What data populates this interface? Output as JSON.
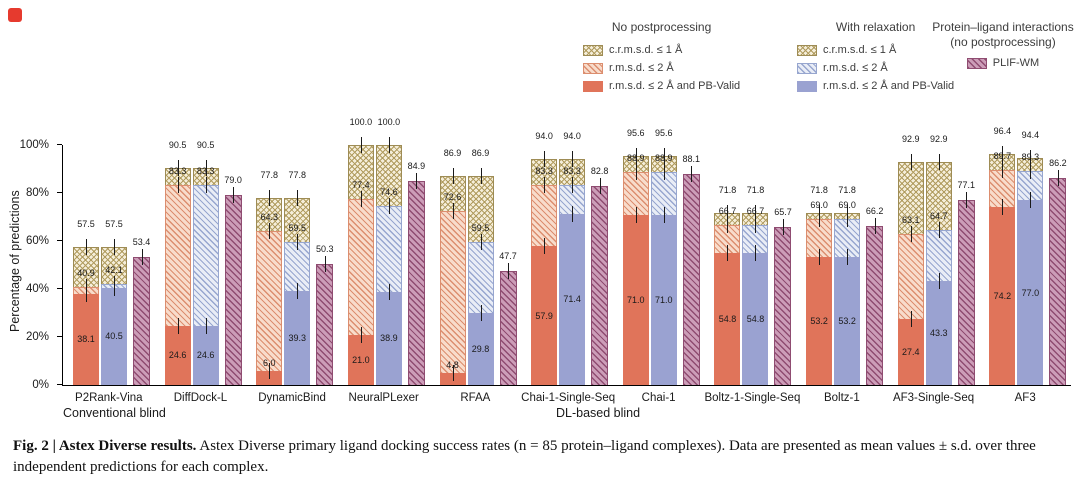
{
  "caption": {
    "label": "Fig. 2 |",
    "title": "Astex Diverse results.",
    "body": "Astex Diverse primary ligand docking success rates (n = 85 protein–ligand complexes). Data are presented as mean values ± s.d. over three independent predictions for each complex."
  },
  "axes": {
    "ylabel": "Percentage of predictions",
    "yticks": [
      "0%",
      "20%",
      "40%",
      "60%",
      "80%",
      "100%"
    ],
    "group_labels": [
      {
        "label": "Conventional blind"
      },
      {
        "label": "DL-based blind"
      }
    ]
  },
  "legend": {
    "groups": [
      {
        "title": "No postprocessing",
        "items": [
          {
            "label": "c.r.m.s.d. ≤ 1 Å",
            "swatch": "tan-crosshatch"
          },
          {
            "label": "r.m.s.d. ≤ 2 Å",
            "swatch": "salmon-hatch"
          },
          {
            "label": "r.m.s.d. ≤ 2 Å and PB-Valid",
            "swatch": "salmon-solid"
          }
        ]
      },
      {
        "title": "With relaxation",
        "items": [
          {
            "label": "c.r.m.s.d. ≤ 1 Å",
            "swatch": "tan-crosshatch"
          },
          {
            "label": "r.m.s.d. ≤ 2 Å",
            "swatch": "blue-hatch"
          },
          {
            "label": "r.m.s.d. ≤ 2 Å and PB-Valid",
            "swatch": "lavender-solid"
          }
        ]
      },
      {
        "title": "Protein–ligand interactions (no postprocessing)",
        "items": [
          {
            "label": "PLIF-WM",
            "swatch": "plif-hatch"
          }
        ]
      }
    ]
  },
  "chart_data": {
    "type": "bar",
    "title": "",
    "xlabel": "",
    "ylabel": "Percentage of predictions",
    "ylim": [
      0,
      100
    ],
    "grid": false,
    "error_bars_shown": true,
    "value_labels_shown": true,
    "legend_position": "top-right",
    "categories": [
      "P2Rank-Vina",
      "DiffDock-L",
      "DynamicBind",
      "NeuralPLexer",
      "RFAA",
      "Chai-1-Single-Seq",
      "Chai-1",
      "Boltz-1-Single-Seq",
      "Boltz-1",
      "AF3-Single-Seq",
      "AF3"
    ],
    "category_groups": [
      {
        "label": "Conventional blind",
        "span": [
          0,
          4
        ]
      },
      {
        "label": "DL-based blind",
        "span": [
          5,
          10
        ]
      }
    ],
    "series": [
      {
        "name": "c.r.m.s.d. ≤ 1 Å (no postprocessing)",
        "values": [
          57.5,
          90.5,
          77.8,
          100.0,
          86.9,
          94.0,
          95.6,
          71.8,
          71.8,
          92.9,
          96.4
        ]
      },
      {
        "name": "r.m.s.d. ≤ 2 Å (no postprocessing)",
        "values": [
          40.9,
          83.3,
          64.3,
          77.4,
          72.6,
          83.3,
          88.9,
          66.7,
          69.0,
          63.1,
          89.7
        ]
      },
      {
        "name": "r.m.s.d. ≤ 2 Å and PB-Valid (no postprocessing)",
        "values": [
          38.1,
          24.6,
          6.0,
          21.0,
          4.8,
          57.9,
          71.0,
          54.8,
          53.2,
          27.4,
          74.2
        ]
      },
      {
        "name": "c.r.m.s.d. ≤ 1 Å (with relaxation)",
        "values": [
          57.5,
          90.5,
          77.8,
          100.0,
          86.9,
          94.0,
          95.6,
          71.8,
          71.8,
          92.9,
          94.4
        ]
      },
      {
        "name": "r.m.s.d. ≤ 2 Å (with relaxation)",
        "values": [
          42.1,
          83.3,
          59.5,
          74.6,
          59.5,
          83.3,
          88.9,
          66.7,
          69.0,
          64.7,
          89.3
        ]
      },
      {
        "name": "r.m.s.d. ≤ 2 Å and PB-Valid (with relaxation)",
        "values": [
          40.5,
          24.6,
          39.3,
          38.9,
          29.8,
          71.4,
          71.0,
          54.8,
          53.2,
          43.3,
          77.0
        ]
      },
      {
        "name": "PLIF-WM",
        "values": [
          53.4,
          79.0,
          50.3,
          84.9,
          47.7,
          82.8,
          88.1,
          65.7,
          66.2,
          77.1,
          86.2
        ]
      }
    ]
  },
  "colors": {
    "tan-bg": "#f5eeda",
    "tan-line": "#b09b5e",
    "tan-border": "#9e8c55",
    "salmon-bg": "#f8dccb",
    "salmon-line": "#dc8e6f",
    "salmon-solid": "#e0745a",
    "blue-bg": "#e9edf6",
    "blue-line": "#97a6cf",
    "lavender-solid": "#9aa2d1",
    "plif-bg": "#cc9db8",
    "plif-line": "#8f4c71",
    "logo-red": "#e63a2e"
  }
}
